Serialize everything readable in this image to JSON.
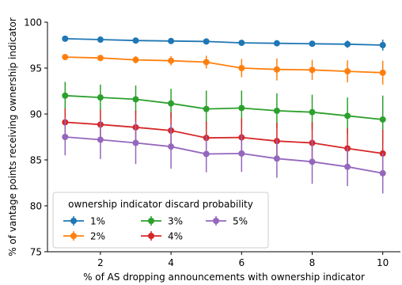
{
  "chart_data": {
    "type": "line",
    "title": "",
    "xlabel": "% of AS dropping announcements with ownership indicator",
    "ylabel": "% of vantage points receiving ownership indicator",
    "xlim": [
      0.5,
      10.5
    ],
    "ylim": [
      75,
      100
    ],
    "xticks": [
      2,
      4,
      6,
      8,
      10
    ],
    "yticks": [
      75,
      80,
      85,
      90,
      95,
      100
    ],
    "x": [
      1,
      2,
      3,
      4,
      5,
      6,
      7,
      8,
      9,
      10
    ],
    "grid": false,
    "legend": {
      "title": "ownership indicator discard probability",
      "placement": "lower-left",
      "ncol": 3
    },
    "series": [
      {
        "name": "1%",
        "color": "#1f77b4",
        "values": [
          98.2,
          98.1,
          98.0,
          97.95,
          97.9,
          97.75,
          97.7,
          97.65,
          97.6,
          97.5
        ],
        "errors": [
          0.3,
          0.3,
          0.3,
          0.3,
          0.3,
          0.3,
          0.3,
          0.3,
          0.4,
          0.6
        ]
      },
      {
        "name": "2%",
        "color": "#ff7f0e",
        "values": [
          96.2,
          96.1,
          95.9,
          95.8,
          95.65,
          95.0,
          94.85,
          94.8,
          94.65,
          94.5
        ],
        "errors": [
          0.3,
          0.3,
          0.4,
          0.5,
          0.7,
          1.0,
          1.2,
          1.1,
          1.2,
          1.3
        ]
      },
      {
        "name": "3%",
        "color": "#2ca02c",
        "values": [
          92.0,
          91.8,
          91.6,
          91.15,
          90.55,
          90.65,
          90.35,
          90.2,
          89.8,
          89.4
        ],
        "errors": [
          1.5,
          1.4,
          1.5,
          1.6,
          2.0,
          1.9,
          1.9,
          1.9,
          2.0,
          2.6
        ]
      },
      {
        "name": "4%",
        "color": "#d62728",
        "values": [
          89.1,
          88.85,
          88.55,
          88.2,
          87.4,
          87.45,
          87.05,
          86.85,
          86.25,
          85.7
        ],
        "errors": [
          1.5,
          1.6,
          1.8,
          2.0,
          1.8,
          2.1,
          2.0,
          2.3,
          2.2,
          2.6
        ]
      },
      {
        "name": "5%",
        "color": "#9467bd",
        "values": [
          87.5,
          87.2,
          86.85,
          86.45,
          85.65,
          85.7,
          85.15,
          84.8,
          84.25,
          83.55
        ],
        "errors": [
          2.0,
          2.1,
          2.3,
          2.4,
          2.0,
          2.0,
          2.1,
          2.4,
          2.1,
          2.2
        ]
      }
    ]
  }
}
